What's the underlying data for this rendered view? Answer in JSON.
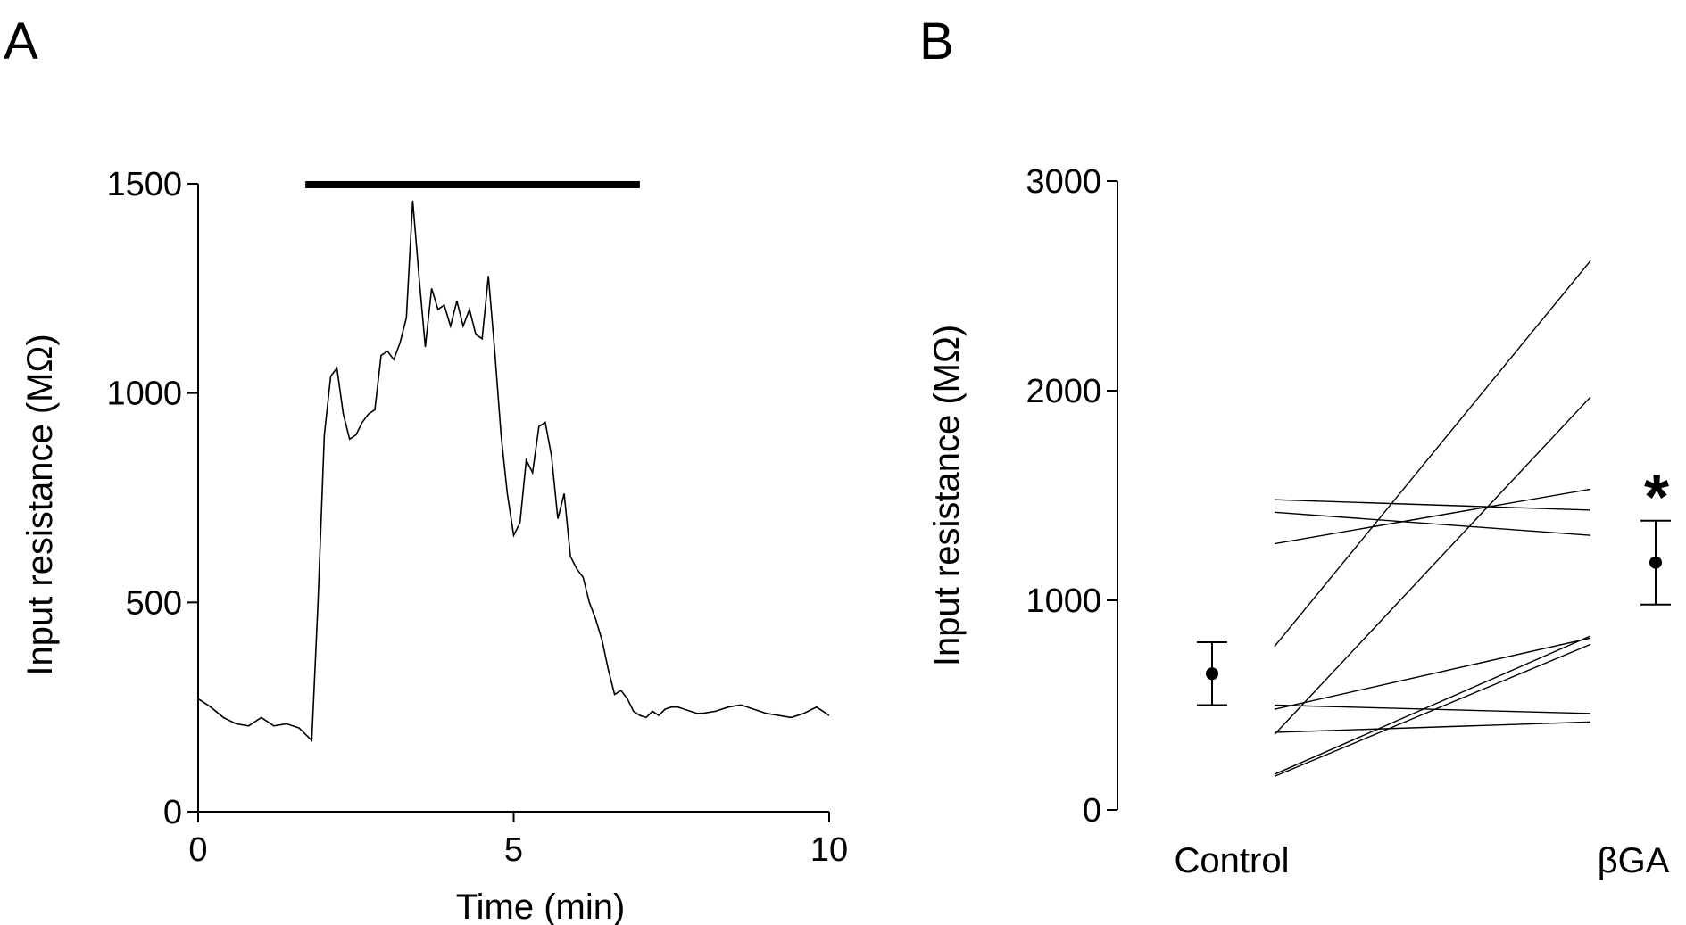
{
  "panel_a_label": "A",
  "panel_b_label": "B",
  "chart_data": [
    {
      "type": "line",
      "xlabel": "Time (min)",
      "ylabel": "Input resistance (MΩ)",
      "xlim": [
        0,
        10
      ],
      "ylim": [
        0,
        1500
      ],
      "xticks": [
        0,
        5,
        10
      ],
      "yticks": [
        0,
        500,
        1000,
        1500
      ],
      "grid": false,
      "annotation_bar": {
        "x_start": 1.7,
        "x_end": 7.0,
        "label": ""
      },
      "series": [
        {
          "x": [
            0,
            0.2,
            0.4,
            0.6,
            0.8,
            1.0,
            1.1,
            1.2,
            1.4,
            1.6,
            1.8,
            1.9,
            2.0,
            2.1,
            2.2,
            2.3,
            2.4,
            2.5,
            2.6,
            2.7,
            2.8,
            2.9,
            3.0,
            3.1,
            3.2,
            3.3,
            3.4,
            3.5,
            3.6,
            3.7,
            3.8,
            3.9,
            4.0,
            4.1,
            4.2,
            4.3,
            4.4,
            4.5,
            4.6,
            4.7,
            4.8,
            4.9,
            5.0,
            5.1,
            5.2,
            5.3,
            5.4,
            5.5,
            5.6,
            5.7,
            5.8,
            5.9,
            6.0,
            6.1,
            6.2,
            6.3,
            6.4,
            6.5,
            6.6,
            6.7,
            6.8,
            6.9,
            7.0,
            7.1,
            7.2,
            7.3,
            7.4,
            7.5,
            7.6,
            7.7,
            7.8,
            7.9,
            8.0,
            8.2,
            8.4,
            8.6,
            8.8,
            9.0,
            9.2,
            9.4,
            9.6,
            9.8,
            10.0
          ],
          "y": [
            270,
            250,
            225,
            210,
            205,
            225,
            215,
            205,
            210,
            200,
            170,
            500,
            900,
            1040,
            1060,
            950,
            890,
            900,
            930,
            950,
            960,
            1090,
            1100,
            1080,
            1120,
            1180,
            1460,
            1280,
            1110,
            1250,
            1200,
            1210,
            1160,
            1220,
            1160,
            1200,
            1140,
            1130,
            1280,
            1100,
            900,
            760,
            660,
            690,
            840,
            810,
            920,
            930,
            850,
            700,
            760,
            610,
            580,
            560,
            500,
            460,
            410,
            340,
            280,
            290,
            270,
            240,
            230,
            225,
            240,
            230,
            245,
            250,
            250,
            245,
            240,
            235,
            235,
            240,
            250,
            255,
            245,
            235,
            230,
            225,
            235,
            250,
            230
          ]
        }
      ]
    },
    {
      "type": "line",
      "xlabel": "",
      "ylabel": "Input resistance (MΩ)",
      "categories": [
        "Control",
        "βGA"
      ],
      "ylim": [
        0,
        3000
      ],
      "yticks": [
        0,
        1000,
        2000,
        3000
      ],
      "grid": false,
      "significance_marker": "*",
      "paired_lines": [
        {
          "control": 780,
          "bga": 2620
        },
        {
          "control": 360,
          "bga": 1970
        },
        {
          "control": 1480,
          "bga": 1430
        },
        {
          "control": 1420,
          "bga": 1310
        },
        {
          "control": 1270,
          "bga": 1530
        },
        {
          "control": 480,
          "bga": 820
        },
        {
          "control": 500,
          "bga": 460
        },
        {
          "control": 370,
          "bga": 420
        },
        {
          "control": 170,
          "bga": 830
        },
        {
          "control": 160,
          "bga": 790
        }
      ],
      "means": [
        {
          "category": "Control",
          "mean": 650,
          "error": 150
        },
        {
          "category": "βGA",
          "mean": 1180,
          "error": 200
        }
      ]
    }
  ]
}
